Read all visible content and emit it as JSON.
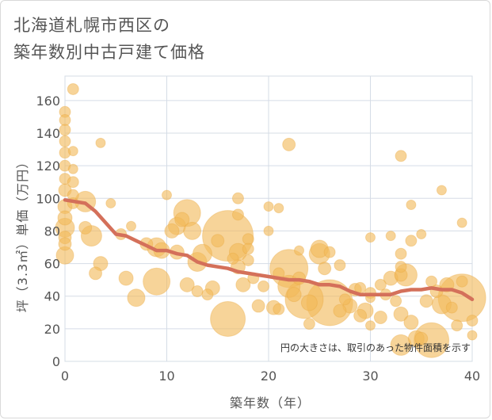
{
  "title_lines": [
    "北海道札幌市西区の",
    "築年数別中古戸建て価格"
  ],
  "chart_data": {
    "type": "scatter",
    "xlabel": "築年数（年）",
    "ylabel": "坪（3.3㎡）単価（万円）",
    "xlim": [
      0,
      40
    ],
    "ylim": [
      0,
      175
    ],
    "x_ticks": [
      0,
      10,
      20,
      30,
      40
    ],
    "y_ticks": [
      0,
      20,
      40,
      60,
      80,
      100,
      120,
      140,
      160
    ],
    "grid": true,
    "note": "円の大きさは、取引のあった物件面積を示す",
    "bubble_color": "#f2b95a",
    "trend_color": "#d4705a",
    "points": [
      {
        "x": 0,
        "y": 153,
        "s": 7
      },
      {
        "x": 0,
        "y": 148,
        "s": 7
      },
      {
        "x": 0,
        "y": 142,
        "s": 7
      },
      {
        "x": 0,
        "y": 135,
        "s": 7
      },
      {
        "x": 0,
        "y": 128,
        "s": 7
      },
      {
        "x": 0,
        "y": 120,
        "s": 7
      },
      {
        "x": 0,
        "y": 112,
        "s": 7
      },
      {
        "x": 0,
        "y": 105,
        "s": 8
      },
      {
        "x": 0,
        "y": 95,
        "s": 9
      },
      {
        "x": 0,
        "y": 88,
        "s": 9
      },
      {
        "x": 0,
        "y": 82,
        "s": 12
      },
      {
        "x": 0,
        "y": 76,
        "s": 8
      },
      {
        "x": 0,
        "y": 72,
        "s": 8
      },
      {
        "x": 0,
        "y": 65,
        "s": 11
      },
      {
        "x": 0.8,
        "y": 167,
        "s": 7
      },
      {
        "x": 0.8,
        "y": 129,
        "s": 6
      },
      {
        "x": 0.8,
        "y": 118,
        "s": 6
      },
      {
        "x": 0.8,
        "y": 110,
        "s": 7
      },
      {
        "x": 0.8,
        "y": 102,
        "s": 7
      },
      {
        "x": 0.8,
        "y": 97,
        "s": 7
      },
      {
        "x": 2,
        "y": 98,
        "s": 13
      },
      {
        "x": 2,
        "y": 82,
        "s": 8
      },
      {
        "x": 2.6,
        "y": 77,
        "s": 13
      },
      {
        "x": 3,
        "y": 54,
        "s": 8
      },
      {
        "x": 3.5,
        "y": 134,
        "s": 6
      },
      {
        "x": 3.5,
        "y": 60,
        "s": 9
      },
      {
        "x": 4.5,
        "y": 97,
        "s": 6
      },
      {
        "x": 5.5,
        "y": 78,
        "s": 7
      },
      {
        "x": 6,
        "y": 51,
        "s": 9
      },
      {
        "x": 6.5,
        "y": 83,
        "s": 6
      },
      {
        "x": 7,
        "y": 39,
        "s": 11
      },
      {
        "x": 8,
        "y": 72,
        "s": 8
      },
      {
        "x": 9,
        "y": 49,
        "s": 17
      },
      {
        "x": 9,
        "y": 70,
        "s": 12
      },
      {
        "x": 9.5,
        "y": 68,
        "s": 10
      },
      {
        "x": 10,
        "y": 102,
        "s": 6
      },
      {
        "x": 10.5,
        "y": 80,
        "s": 9
      },
      {
        "x": 11,
        "y": 67,
        "s": 9
      },
      {
        "x": 11,
        "y": 83,
        "s": 11
      },
      {
        "x": 11.5,
        "y": 87,
        "s": 9
      },
      {
        "x": 12,
        "y": 91,
        "s": 17
      },
      {
        "x": 12,
        "y": 47,
        "s": 9
      },
      {
        "x": 12.5,
        "y": 80,
        "s": 11
      },
      {
        "x": 13,
        "y": 61,
        "s": 12
      },
      {
        "x": 13,
        "y": 43,
        "s": 7
      },
      {
        "x": 13.5,
        "y": 66,
        "s": 12
      },
      {
        "x": 14,
        "y": 41,
        "s": 7
      },
      {
        "x": 14.5,
        "y": 45,
        "s": 9
      },
      {
        "x": 15,
        "y": 74,
        "s": 8
      },
      {
        "x": 16,
        "y": 77,
        "s": 32
      },
      {
        "x": 16,
        "y": 26,
        "s": 22
      },
      {
        "x": 16.5,
        "y": 63,
        "s": 7
      },
      {
        "x": 17,
        "y": 100,
        "s": 7
      },
      {
        "x": 17,
        "y": 90,
        "s": 7
      },
      {
        "x": 17,
        "y": 67,
        "s": 11
      },
      {
        "x": 17,
        "y": 58,
        "s": 9
      },
      {
        "x": 17.5,
        "y": 47,
        "s": 9
      },
      {
        "x": 18,
        "y": 75,
        "s": 7
      },
      {
        "x": 18,
        "y": 69,
        "s": 7
      },
      {
        "x": 18,
        "y": 62,
        "s": 7
      },
      {
        "x": 18.5,
        "y": 51,
        "s": 7
      },
      {
        "x": 19,
        "y": 34,
        "s": 8
      },
      {
        "x": 19.5,
        "y": 46,
        "s": 7
      },
      {
        "x": 20,
        "y": 80,
        "s": 6
      },
      {
        "x": 20,
        "y": 95,
        "s": 6
      },
      {
        "x": 20.5,
        "y": 33,
        "s": 9
      },
      {
        "x": 21,
        "y": 94,
        "s": 6
      },
      {
        "x": 21,
        "y": 54,
        "s": 7
      },
      {
        "x": 21,
        "y": 32,
        "s": 7
      },
      {
        "x": 22,
        "y": 133,
        "s": 8
      },
      {
        "x": 22,
        "y": 57,
        "s": 24
      },
      {
        "x": 22,
        "y": 46,
        "s": 14
      },
      {
        "x": 22.5,
        "y": 41,
        "s": 9
      },
      {
        "x": 23,
        "y": 68,
        "s": 6
      },
      {
        "x": 23,
        "y": 51,
        "s": 8
      },
      {
        "x": 23.5,
        "y": 38,
        "s": 24
      },
      {
        "x": 24,
        "y": 36,
        "s": 10
      },
      {
        "x": 24,
        "y": 23,
        "s": 7
      },
      {
        "x": 25,
        "y": 69,
        "s": 11
      },
      {
        "x": 25,
        "y": 66,
        "s": 13
      },
      {
        "x": 25.5,
        "y": 57,
        "s": 8
      },
      {
        "x": 26,
        "y": 67,
        "s": 7
      },
      {
        "x": 26,
        "y": 36,
        "s": 29
      },
      {
        "x": 27,
        "y": 59,
        "s": 7
      },
      {
        "x": 27,
        "y": 31,
        "s": 8
      },
      {
        "x": 27.5,
        "y": 38,
        "s": 7
      },
      {
        "x": 28,
        "y": 34,
        "s": 9
      },
      {
        "x": 28.5,
        "y": 44,
        "s": 8
      },
      {
        "x": 29,
        "y": 45,
        "s": 7
      },
      {
        "x": 29,
        "y": 28,
        "s": 8
      },
      {
        "x": 29.5,
        "y": 31,
        "s": 10
      },
      {
        "x": 30,
        "y": 76,
        "s": 6
      },
      {
        "x": 30,
        "y": 42,
        "s": 7
      },
      {
        "x": 30,
        "y": 39,
        "s": 6
      },
      {
        "x": 30,
        "y": 22,
        "s": 6
      },
      {
        "x": 31,
        "y": 47,
        "s": 7
      },
      {
        "x": 31,
        "y": 27,
        "s": 8
      },
      {
        "x": 31.5,
        "y": 41,
        "s": 7
      },
      {
        "x": 32,
        "y": 77,
        "s": 6
      },
      {
        "x": 32,
        "y": 51,
        "s": 9
      },
      {
        "x": 32.5,
        "y": 37,
        "s": 7
      },
      {
        "x": 33,
        "y": 126,
        "s": 7
      },
      {
        "x": 33,
        "y": 66,
        "s": 7
      },
      {
        "x": 33,
        "y": 58,
        "s": 7
      },
      {
        "x": 33,
        "y": 53,
        "s": 8
      },
      {
        "x": 33,
        "y": 29,
        "s": 9
      },
      {
        "x": 33,
        "y": 10,
        "s": 13
      },
      {
        "x": 33.5,
        "y": 53,
        "s": 14
      },
      {
        "x": 34,
        "y": 96,
        "s": 6
      },
      {
        "x": 34,
        "y": 74,
        "s": 7
      },
      {
        "x": 34,
        "y": 24,
        "s": 9
      },
      {
        "x": 34.5,
        "y": 14,
        "s": 10
      },
      {
        "x": 35,
        "y": 78,
        "s": 6
      },
      {
        "x": 35,
        "y": 14,
        "s": 8
      },
      {
        "x": 35.5,
        "y": 37,
        "s": 8
      },
      {
        "x": 36,
        "y": 13,
        "s": 22
      },
      {
        "x": 36,
        "y": 49,
        "s": 7
      },
      {
        "x": 36.5,
        "y": 43,
        "s": 8
      },
      {
        "x": 37,
        "y": 105,
        "s": 6
      },
      {
        "x": 37,
        "y": 35,
        "s": 12
      },
      {
        "x": 37.5,
        "y": 47,
        "s": 9
      },
      {
        "x": 38,
        "y": 33,
        "s": 7
      },
      {
        "x": 38.5,
        "y": 22,
        "s": 7
      },
      {
        "x": 39,
        "y": 85,
        "s": 6
      },
      {
        "x": 39,
        "y": 49,
        "s": 7
      },
      {
        "x": 39,
        "y": 39,
        "s": 30
      },
      {
        "x": 40,
        "y": 25,
        "s": 7
      },
      {
        "x": 40,
        "y": 16,
        "s": 6
      }
    ],
    "trend": {
      "x": [
        0,
        2,
        3,
        4,
        5,
        6,
        7,
        8,
        9,
        10,
        11,
        12,
        13,
        14,
        15,
        16,
        17,
        18,
        19,
        20,
        21,
        22,
        23,
        24,
        25,
        26,
        27,
        28,
        29,
        30,
        31,
        32,
        33,
        34,
        35,
        36,
        37,
        38,
        39,
        40
      ],
      "y": [
        99,
        97,
        92,
        85,
        78,
        77,
        74,
        71,
        68,
        68,
        66,
        65,
        61,
        59,
        58,
        57,
        55,
        54,
        53,
        52,
        51,
        50,
        50,
        49,
        47,
        47,
        46,
        43,
        41,
        41,
        41,
        41,
        43,
        44,
        44,
        45,
        44,
        44,
        42,
        38
      ]
    }
  }
}
